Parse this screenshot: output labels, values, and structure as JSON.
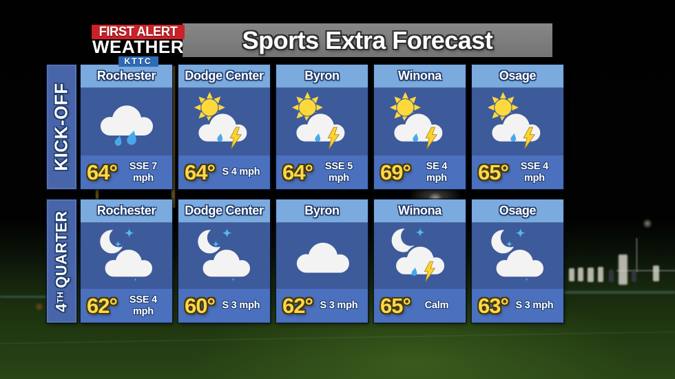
{
  "branding": {
    "first_alert": "FIRST ALERT",
    "weather": "WEATHER",
    "station": "KTTC"
  },
  "title": "Sports Extra Forecast",
  "colors": {
    "card_header_blue": "#7AAADE",
    "card_body_blue": "#3D5A9B",
    "card_footer_blue": "#4A70BE",
    "row_bar_blue": "#4765A8",
    "temp_yellow": "#FFD84A",
    "title_bar_grey": "#7B7B7B",
    "brand_red": "#CE2027",
    "brand_blue": "#2E6AB5",
    "sun_yellow": "#FFD93B",
    "bolt_yellow": "#FFD22E",
    "rain_blue": "#49A8EA",
    "star_blue": "#54B9EF",
    "cloud_white": "#F3F3F3"
  },
  "rows": [
    {
      "label": {
        "pre": "",
        "sup": "",
        "text": "KICK-OFF"
      },
      "cards": [
        {
          "city": "Rochester",
          "condition": "rain",
          "temp": "64°",
          "wind_line1": "SSE 7",
          "wind_line2": "mph"
        },
        {
          "city": "Dodge Center",
          "condition": "day-storm",
          "temp": "64°",
          "wind_line1": "S 4 mph",
          "wind_line2": ""
        },
        {
          "city": "Byron",
          "condition": "day-storm",
          "temp": "64°",
          "wind_line1": "SSE 5",
          "wind_line2": "mph"
        },
        {
          "city": "Winona",
          "condition": "day-storm",
          "temp": "69°",
          "wind_line1": "SE 4",
          "wind_line2": "mph"
        },
        {
          "city": "Osage",
          "condition": "day-storm",
          "temp": "65°",
          "wind_line1": "SSE 4",
          "wind_line2": "mph"
        }
      ]
    },
    {
      "label": {
        "pre": "4",
        "sup": "TH",
        "text": "QUARTER"
      },
      "cards": [
        {
          "city": "Rochester",
          "condition": "night-cloud",
          "temp": "62°",
          "wind_line1": "SSE 4",
          "wind_line2": "mph"
        },
        {
          "city": "Dodge Center",
          "condition": "night-cloud",
          "temp": "60°",
          "wind_line1": "S 3 mph",
          "wind_line2": ""
        },
        {
          "city": "Byron",
          "condition": "cloudy",
          "temp": "62°",
          "wind_line1": "S 3 mph",
          "wind_line2": ""
        },
        {
          "city": "Winona",
          "condition": "night-storm",
          "temp": "65°",
          "wind_line1": "Calm",
          "wind_line2": ""
        },
        {
          "city": "Osage",
          "condition": "night-cloud",
          "temp": "63°",
          "wind_line1": "S 3 mph",
          "wind_line2": ""
        }
      ]
    }
  ]
}
